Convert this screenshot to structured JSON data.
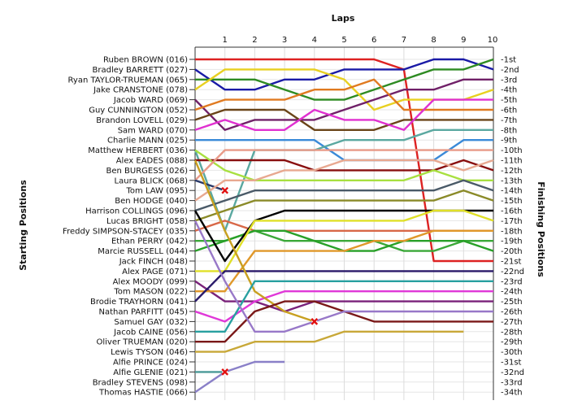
{
  "chart_data": {
    "type": "line",
    "title": "",
    "xlabel": "Laps",
    "ylabel_left": "Starting Positions",
    "ylabel_right": "Finishing Positions",
    "x_ticks": [
      1,
      2,
      3,
      4,
      5,
      6,
      7,
      8,
      9,
      10
    ],
    "xlim": [
      0,
      10
    ],
    "ylim": [
      1,
      34
    ],
    "y_inverted": true,
    "grid": true,
    "drivers": [
      "Ruben BROWN (016)",
      "Bradley BARRETT (027)",
      "Ryan TAYLOR-TRUEMAN (065)",
      "Jake CRANSTONE (078)",
      "Jacob WARD (069)",
      "Guy CUNNINGTON (052)",
      "Brandon LOVELL (029)",
      "Sam WARD (070)",
      "Charlie MANN (025)",
      "Matthew HERBERT (036)",
      "Alex EADES (088)",
      "Ben BURGESS (026)",
      "Laura BLICK (068)",
      "Tom LAW (095)",
      "Ben HODGE (040)",
      "Harrison COLLINGS (096)",
      "Lucas BRIGHT (058)",
      "Freddy SIMPSON-STACEY (035)",
      "Ethan PERRY (042)",
      "Marcie RUSSELL (044)",
      "Jack FINCH (048)",
      "Alex PAGE (071)",
      "Alex MOODY (099)",
      "Tom MASON (022)",
      "Brodie TRAYHORN (041)",
      "Nathan PARFITT (045)",
      "Samuel GAY (032)",
      "Jacob CAINE (056)",
      "Oliver TRUEMAN (020)",
      "Lewis TYSON (046)",
      "Alfie PRINCE (024)",
      "Alfie GLENIE (021)",
      "Bradley STEVENS (098)",
      "Thomas HASTIE (066)"
    ],
    "finishing_positions": [
      "1st",
      "2nd",
      "3rd",
      "4th",
      "5th",
      "6th",
      "7th",
      "8th",
      "9th",
      "10th",
      "11th",
      "12th",
      "13th",
      "14th",
      "15th",
      "16th",
      "17th",
      "18th",
      "19th",
      "20th",
      "21st",
      "22nd",
      "23rd",
      "24th",
      "25th",
      "26th",
      "27th",
      "28th",
      "29th",
      "30th",
      "31st",
      "32nd",
      "33rd",
      "34th"
    ],
    "series": [
      {
        "color": "#dd2222",
        "values": [
          1,
          1,
          1,
          1,
          1,
          1,
          1,
          2,
          21,
          21,
          21
        ]
      },
      {
        "color": "#1a1aa6",
        "values": [
          2,
          4,
          4,
          3,
          3,
          2,
          2,
          2,
          1,
          1,
          2
        ]
      },
      {
        "color": "#2e8b22",
        "values": [
          3,
          3,
          3,
          4,
          5,
          5,
          4,
          3,
          2,
          2,
          1
        ]
      },
      {
        "color": "#e8d020",
        "values": [
          4,
          2,
          2,
          2,
          2,
          3,
          6,
          5,
          5,
          5,
          4
        ]
      },
      {
        "color": "#702068",
        "values": [
          5,
          8,
          7,
          7,
          7,
          6,
          5,
          4,
          4,
          3,
          3
        ]
      },
      {
        "color": "#e07a20",
        "values": [
          6,
          5,
          5,
          5,
          4,
          4,
          3,
          6,
          6,
          6,
          6
        ]
      },
      {
        "color": "#6a4418",
        "values": [
          7,
          6,
          6,
          6,
          8,
          8,
          8,
          7,
          7,
          7,
          7
        ]
      },
      {
        "color": "#e030d0",
        "values": [
          8,
          7,
          8,
          8,
          6,
          7,
          7,
          8,
          5,
          5,
          5
        ]
      },
      {
        "color": "#3a8ad8",
        "values": [
          9,
          9,
          9,
          9,
          9,
          11,
          11,
          11,
          11,
          9,
          9
        ]
      },
      {
        "color": "#5aa8a0",
        "values": [
          10,
          18,
          10,
          10,
          10,
          9,
          9,
          9,
          8,
          8,
          8
        ]
      },
      {
        "color": "#880e0e",
        "values": [
          11,
          11,
          11,
          11,
          12,
          12,
          12,
          12,
          12,
          11,
          12
        ]
      },
      {
        "color": "#a8e040",
        "values": [
          10,
          12,
          13,
          13,
          13,
          13,
          13,
          13,
          12,
          13,
          13
        ]
      },
      {
        "color": "#e89a88",
        "values": [
          13,
          10,
          10,
          10,
          10,
          10,
          10,
          10,
          10,
          10,
          10
        ]
      },
      {
        "color": "#283868",
        "values": [
          13,
          14
        ]
      },
      {
        "color": "#e8a890",
        "values": [
          15,
          13,
          13,
          12,
          12,
          11,
          11,
          11,
          11,
          12,
          11
        ]
      },
      {
        "color": "#4a5a68",
        "values": [
          16,
          15,
          14,
          14,
          14,
          14,
          14,
          14,
          14,
          13,
          14
        ]
      },
      {
        "color": "#8a8a28",
        "values": [
          17,
          16,
          15,
          15,
          15,
          15,
          15,
          15,
          15,
          14,
          15
        ]
      },
      {
        "color": "#d86848",
        "values": [
          18,
          17,
          18,
          18,
          18,
          18,
          18,
          18,
          18,
          18,
          18
        ]
      },
      {
        "color": "#3aa838",
        "values": [
          19,
          19,
          18,
          19,
          19,
          19,
          19,
          20,
          20,
          19,
          19
        ]
      },
      {
        "color": "#28a028",
        "values": [
          20,
          19,
          18,
          18,
          19,
          20,
          20,
          19,
          19,
          19,
          20
        ]
      },
      {
        "color": "#000000",
        "values": [
          16,
          21,
          17,
          16,
          16,
          16,
          16,
          16,
          16,
          16,
          16
        ]
      },
      {
        "color": "#e0e028",
        "values": [
          22,
          22,
          17,
          17,
          17,
          17,
          17,
          17,
          16,
          16,
          17
        ]
      },
      {
        "color": "#7a227a",
        "values": [
          23,
          25,
          25,
          26,
          25,
          25,
          25,
          25,
          25,
          25,
          25
        ]
      },
      {
        "color": "#e0982a",
        "values": [
          24,
          24,
          20,
          20,
          20,
          20,
          19,
          19,
          18,
          18,
          18
        ]
      },
      {
        "color": "#2a1a6a",
        "values": [
          25,
          22,
          22,
          22,
          22,
          22,
          22,
          22,
          22,
          22,
          22
        ]
      },
      {
        "color": "#e038d8",
        "values": [
          26,
          27,
          25,
          24,
          24,
          24,
          24,
          24,
          24,
          24,
          24
        ]
      },
      {
        "color": "#c8a020",
        "values": [
          11,
          18,
          24,
          26,
          27
        ]
      },
      {
        "color": "#28a0a0",
        "values": [
          28,
          28,
          23,
          23,
          23,
          23,
          23,
          23,
          23,
          23,
          23
        ]
      },
      {
        "color": "#7a1818",
        "values": [
          29,
          29,
          26,
          25,
          25,
          26,
          27,
          27,
          27,
          27,
          27
        ]
      },
      {
        "color": "#c8a838",
        "values": [
          30,
          30,
          29,
          29,
          29,
          28,
          28,
          28,
          28,
          28
        ]
      },
      {
        "color": "#b0b0b0",
        "values": [
          31
        ]
      },
      {
        "color": "#4a9a98",
        "values": [
          32,
          32
        ]
      },
      {
        "color": "#9878c8",
        "values": [
          17,
          23,
          28,
          28,
          27,
          26,
          26,
          26,
          26,
          26,
          26
        ]
      },
      {
        "color": "#8a80c8",
        "values": [
          34,
          32,
          31,
          31
        ]
      }
    ],
    "retirements": [
      {
        "x": 1,
        "y": 14
      },
      {
        "x": 4,
        "y": 27
      },
      {
        "x": 1,
        "y": 32
      }
    ]
  }
}
